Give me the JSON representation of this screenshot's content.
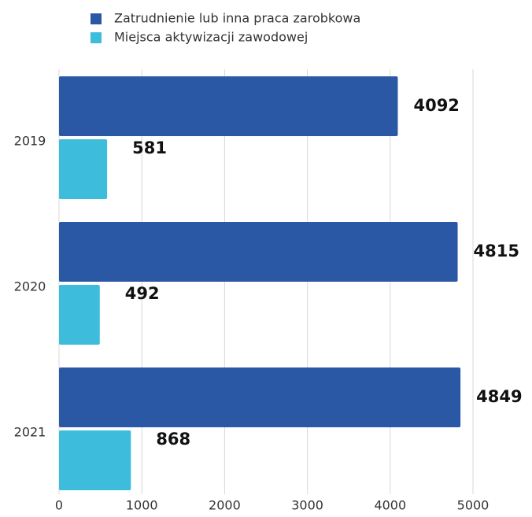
{
  "chart_data": {
    "type": "hbar",
    "categories": [
      "2019",
      "2020",
      "2021"
    ],
    "series": [
      {
        "name": "Zatrudnienie lub inna praca zarobkowa",
        "color": "#2b58a5",
        "values": [
          4092,
          4815,
          4849
        ]
      },
      {
        "name": "Miejsca aktywizacji zawodowej",
        "color": "#3dbcdc",
        "values": [
          581,
          492,
          868
        ]
      }
    ],
    "xlim": [
      0,
      5000
    ],
    "xticks": [
      0,
      1000,
      2000,
      3000,
      4000,
      5000
    ],
    "grid": true,
    "legend": "top"
  }
}
